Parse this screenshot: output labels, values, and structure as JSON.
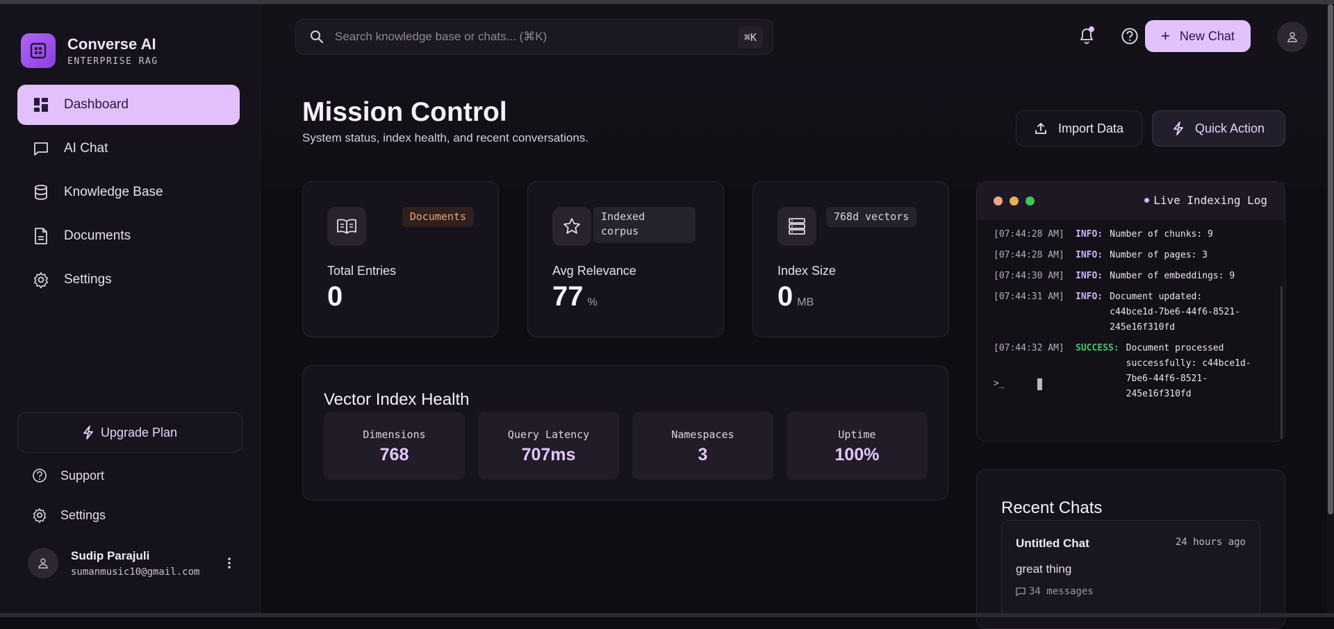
{
  "brand": {
    "name": "Converse AI",
    "subtitle": "ENTERPRISE RAG"
  },
  "sidebar": {
    "items": [
      {
        "label": "Dashboard",
        "icon": "dashboard-icon",
        "active": true
      },
      {
        "label": "AI Chat",
        "icon": "chat-icon",
        "active": false
      },
      {
        "label": "Knowledge Base",
        "icon": "database-icon",
        "active": false
      },
      {
        "label": "Documents",
        "icon": "document-icon",
        "active": false
      },
      {
        "label": "Settings",
        "icon": "gear-icon",
        "active": false
      }
    ],
    "upgrade_label": "Upgrade Plan",
    "support_label": "Support",
    "settings_label": "Settings",
    "user": {
      "name": "Sudip Parajuli",
      "email": "sumanmusic10@gmail.com"
    }
  },
  "topbar": {
    "search_placeholder": "Search knowledge base or chats... (⌘K)",
    "shortcut": "⌘K",
    "new_chat_label": "New Chat"
  },
  "header": {
    "title": "Mission Control",
    "subtitle": "System status, index health, and recent conversations.",
    "import_label": "Import Data",
    "quick_action_label": "Quick Action"
  },
  "stats": [
    {
      "badge": "Documents",
      "label": "Total Entries",
      "value": "0",
      "unit": ""
    },
    {
      "badge": "Indexed corpus",
      "label": "Avg Relevance",
      "value": "77",
      "unit": "%"
    },
    {
      "badge": "768d vectors",
      "label": "Index Size",
      "value": "0",
      "unit": "MB"
    }
  ],
  "health": {
    "title": "Vector Index Health",
    "metrics": [
      {
        "label": "Dimensions",
        "value": "768"
      },
      {
        "label": "Query Latency",
        "value": "707ms"
      },
      {
        "label": "Namespaces",
        "value": "3"
      },
      {
        "label": "Uptime",
        "value": "100%"
      }
    ]
  },
  "log": {
    "title": "Live Indexing Log",
    "entries": [
      {
        "time": "[07:44:28 AM]",
        "level": "INFO:",
        "message": "Number of chunks: 9"
      },
      {
        "time": "[07:44:28 AM]",
        "level": "INFO:",
        "message": "Number of pages: 3"
      },
      {
        "time": "[07:44:30 AM]",
        "level": "INFO:",
        "message": "Number of embeddings: 9"
      },
      {
        "time": "[07:44:31 AM]",
        "level": "INFO:",
        "message": "Document updated: c44bce1d-7be6-44f6-8521-245e16f310fd"
      },
      {
        "time": "[07:44:32 AM]",
        "level": "SUCCESS:",
        "message": "Document processed successfully: c44bce1d-7be6-44f6-8521-245e16f310fd"
      }
    ],
    "prompt": ">_"
  },
  "recent": {
    "title": "Recent Chats",
    "chats": [
      {
        "title": "Untitled Chat",
        "time": "24 hours ago",
        "preview": "great thing",
        "count": "34 messages"
      }
    ]
  },
  "colors": {
    "accent": "#e1c0fc",
    "success": "#41c86a",
    "warning": "#eaa86a",
    "background": "#0f0c13"
  }
}
